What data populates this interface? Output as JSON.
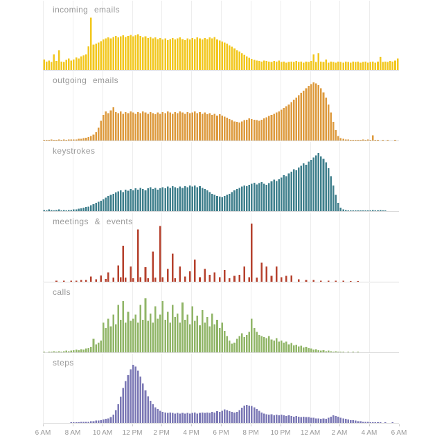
{
  "style": {
    "background": "#ffffff",
    "grid_color": "#ededed",
    "baseline_color": "#dbdbdb",
    "title_color": "#9a9a9a",
    "axis_label_color": "#999999"
  },
  "axis": {
    "tick_labels": [
      "6 AM",
      "8 AM",
      "10 AM",
      "12 PM",
      "2 PM",
      "4 PM",
      "6 PM",
      "8 PM",
      "10 PM",
      "12 AM",
      "2 AM",
      "4 AM",
      "6 AM"
    ]
  },
  "chart_data": {
    "type": "bar",
    "layout": "six stacked small-multiple histograms sharing one time x-axis, vertical gridlines every 2 hours, legend none",
    "x_axis": {
      "start": "6 AM",
      "end": "6 AM (next day)",
      "bin_minutes": 10,
      "bins": 144,
      "tick_interval_hours": 2,
      "tick_labels": [
        "6 AM",
        "8 AM",
        "10 AM",
        "12 PM",
        "2 PM",
        "4 PM",
        "6 PM",
        "8 PM",
        "10 PM",
        "12 AM",
        "2 AM",
        "4 AM",
        "6 AM"
      ]
    },
    "value_units": "relative activity per panel, 0-100 of panel maximum (estimated from pixels)",
    "charts": [
      {
        "title": "incoming emails",
        "color": "#F2C71E",
        "peak_scale": 0.9,
        "values": [
          20,
          16,
          18,
          15,
          30,
          17,
          38,
          16,
          15,
          19,
          22,
          18,
          20,
          24,
          22,
          26,
          28,
          30,
          45,
          100,
          48,
          50,
          52,
          55,
          58,
          60,
          62,
          60,
          63,
          65,
          62,
          64,
          66,
          63,
          65,
          67,
          64,
          66,
          68,
          65,
          62,
          64,
          61,
          63,
          60,
          62,
          59,
          61,
          58,
          60,
          57,
          59,
          61,
          58,
          60,
          62,
          59,
          57,
          60,
          58,
          61,
          59,
          62,
          60,
          58,
          61,
          59,
          62,
          60,
          63,
          58,
          56,
          54,
          52,
          50,
          47,
          44,
          41,
          38,
          35,
          32,
          29,
          26,
          23,
          21,
          19,
          18,
          17,
          16,
          18,
          17,
          16,
          15,
          17,
          16,
          18,
          15,
          16,
          14,
          15,
          16,
          15,
          17,
          15,
          16,
          14,
          16,
          15,
          17,
          30,
          15,
          32,
          16,
          15,
          20,
          14,
          16,
          15,
          14,
          16,
          15,
          14,
          16,
          15,
          14,
          16,
          15,
          16,
          14,
          15,
          16,
          14,
          15,
          16,
          14,
          16,
          25,
          15,
          16,
          15,
          17,
          16,
          18,
          22
        ]
      },
      {
        "title": "outgoing emails",
        "color": "#DD9A3D",
        "peak_scale": 1.0,
        "values": [
          1,
          1,
          1,
          2,
          1,
          1,
          2,
          1,
          2,
          1,
          2,
          2,
          2,
          2,
          3,
          3,
          4,
          5,
          6,
          8,
          10,
          14,
          22,
          34,
          44,
          50,
          47,
          52,
          57,
          49,
          47,
          50,
          46,
          49,
          47,
          50,
          48,
          46,
          49,
          47,
          50,
          48,
          46,
          49,
          47,
          45,
          48,
          46,
          49,
          47,
          50,
          48,
          46,
          49,
          47,
          50,
          48,
          46,
          49,
          47,
          48,
          50,
          47,
          49,
          46,
          48,
          45,
          47,
          44,
          46,
          43,
          45,
          43,
          41,
          39,
          37,
          35,
          33,
          32,
          31,
          33,
          35,
          36,
          38,
          37,
          36,
          35,
          34,
          36,
          38,
          40,
          42,
          44,
          46,
          48,
          50,
          53,
          56,
          59,
          62,
          66,
          70,
          74,
          78,
          82,
          86,
          90,
          94,
          97,
          100,
          98,
          95,
          90,
          83,
          74,
          62,
          48,
          32,
          18,
          8,
          4,
          3,
          2,
          2,
          1,
          1,
          1,
          1,
          1,
          2,
          1,
          2,
          1,
          9,
          1,
          1,
          0,
          1,
          0,
          1,
          0,
          0,
          1,
          0
        ]
      },
      {
        "title": "keystrokes",
        "color": "#3F7F8C",
        "peak_scale": 1.0,
        "values": [
          2,
          1,
          3,
          2,
          1,
          2,
          3,
          1,
          2,
          1,
          2,
          2,
          3,
          3,
          4,
          5,
          6,
          7,
          8,
          10,
          12,
          14,
          16,
          18,
          20,
          23,
          26,
          28,
          30,
          32,
          34,
          36,
          33,
          37,
          35,
          38,
          36,
          39,
          37,
          40,
          38,
          36,
          39,
          41,
          38,
          40,
          37,
          39,
          41,
          39,
          42,
          40,
          43,
          41,
          39,
          42,
          40,
          43,
          41,
          44,
          42,
          44,
          41,
          43,
          40,
          38,
          36,
          33,
          30,
          28,
          26,
          25,
          24,
          26,
          28,
          30,
          33,
          36,
          38,
          40,
          42,
          44,
          43,
          45,
          47,
          49,
          46,
          48,
          50,
          47,
          45,
          48,
          51,
          54,
          52,
          55,
          58,
          62,
          60,
          65,
          68,
          72,
          70,
          75,
          78,
          82,
          80,
          85,
          88,
          92,
          96,
          100,
          94,
          90,
          84,
          74,
          60,
          44,
          28,
          14,
          6,
          3,
          2,
          1,
          1,
          1,
          1,
          1,
          1,
          1,
          1,
          1,
          1,
          2,
          1,
          1,
          2,
          1,
          1,
          0,
          0,
          0,
          0,
          0
        ]
      },
      {
        "title": "meetings & events",
        "color": "#B5402C",
        "peak_scale": 1.0,
        "values": [
          0,
          0,
          0,
          0,
          0,
          2,
          0,
          0,
          2,
          0,
          0,
          2,
          0,
          2,
          0,
          3,
          0,
          3,
          0,
          9,
          0,
          4,
          0,
          11,
          0,
          5,
          16,
          0,
          7,
          0,
          28,
          8,
          62,
          7,
          0,
          26,
          6,
          0,
          90,
          8,
          0,
          25,
          6,
          0,
          52,
          7,
          0,
          96,
          8,
          0,
          22,
          0,
          48,
          6,
          0,
          26,
          0,
          9,
          0,
          18,
          0,
          38,
          0,
          8,
          0,
          22,
          0,
          12,
          0,
          16,
          0,
          8,
          0,
          20,
          0,
          6,
          0,
          10,
          0,
          12,
          0,
          26,
          0,
          8,
          100,
          0,
          7,
          0,
          33,
          0,
          26,
          0,
          10,
          0,
          26,
          0,
          8,
          0,
          10,
          0,
          11,
          0,
          0,
          4,
          0,
          0,
          3,
          0,
          0,
          3,
          0,
          0,
          2,
          0,
          0,
          2,
          0,
          0,
          2,
          0,
          0,
          2,
          0,
          0,
          1,
          0,
          0,
          1,
          0,
          0,
          0,
          0,
          0,
          0,
          0,
          0,
          0,
          0,
          0,
          0,
          0,
          0,
          0,
          0
        ]
      },
      {
        "title": "calls",
        "color": "#90B567",
        "peak_scale": 0.93,
        "values": [
          1,
          0,
          1,
          1,
          2,
          1,
          2,
          1,
          2,
          3,
          2,
          3,
          4,
          5,
          4,
          6,
          5,
          7,
          8,
          10,
          25,
          15,
          18,
          22,
          55,
          45,
          62,
          48,
          70,
          52,
          88,
          60,
          95,
          55,
          75,
          58,
          62,
          70,
          55,
          88,
          60,
          100,
          58,
          72,
          55,
          85,
          62,
          70,
          95,
          60,
          75,
          55,
          88,
          65,
          72,
          55,
          92,
          60,
          70,
          52,
          85,
          58,
          68,
          50,
          78,
          55,
          65,
          48,
          72,
          52,
          60,
          45,
          55,
          40,
          30,
          22,
          16,
          18,
          25,
          30,
          35,
          28,
          32,
          38,
          62,
          45,
          38,
          32,
          30,
          28,
          26,
          30,
          24,
          22,
          26,
          20,
          22,
          18,
          20,
          15,
          17,
          13,
          14,
          11,
          12,
          9,
          10,
          8,
          7,
          5,
          6,
          4,
          3,
          4,
          2,
          3,
          2,
          1,
          2,
          1,
          1,
          1,
          0,
          1,
          0,
          1,
          0,
          1,
          0,
          0,
          0,
          0,
          0,
          0,
          0,
          0,
          0,
          0,
          0,
          0,
          0,
          0,
          0,
          0
        ]
      },
      {
        "title": "steps",
        "color": "#7B78B5",
        "peak_scale": 1.0,
        "values": [
          0,
          0,
          0,
          0,
          0,
          0,
          0,
          0,
          0,
          0,
          0,
          1,
          1,
          1,
          1,
          2,
          2,
          2,
          2,
          3,
          3,
          4,
          4,
          5,
          6,
          7,
          8,
          10,
          14,
          22,
          32,
          45,
          60,
          72,
          82,
          92,
          100,
          97,
          90,
          80,
          68,
          56,
          46,
          38,
          32,
          27,
          24,
          21,
          19,
          18,
          17,
          18,
          17,
          16,
          17,
          16,
          17,
          16,
          17,
          16,
          17,
          18,
          16,
          17,
          18,
          17,
          18,
          17,
          19,
          18,
          20,
          19,
          21,
          23,
          22,
          20,
          19,
          18,
          19,
          22,
          26,
          30,
          31,
          30,
          29,
          27,
          24,
          21,
          18,
          16,
          15,
          14,
          15,
          13,
          14,
          13,
          14,
          13,
          12,
          13,
          12,
          11,
          12,
          11,
          10,
          11,
          10,
          10,
          9,
          9,
          8,
          8,
          7,
          8,
          7,
          9,
          11,
          13,
          12,
          11,
          9,
          8,
          7,
          6,
          5,
          5,
          4,
          3,
          3,
          2,
          2,
          2,
          1,
          1,
          1,
          1,
          1,
          0,
          1,
          0,
          0,
          1,
          0,
          0
        ]
      }
    ]
  }
}
